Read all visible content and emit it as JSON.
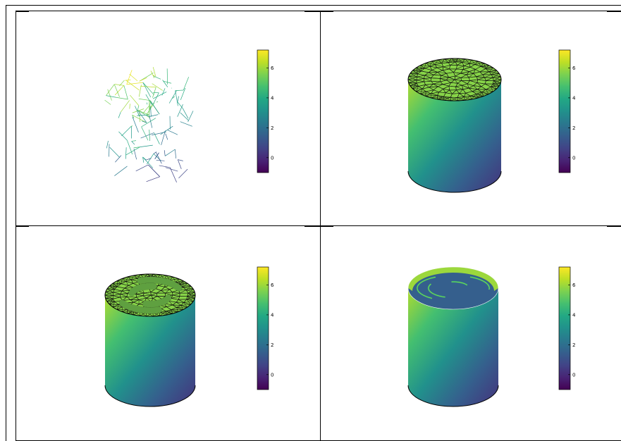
{
  "colormap": "viridis",
  "colors": {
    "viridis": [
      "#440154",
      "#482475",
      "#414487",
      "#355f8d",
      "#2a788e",
      "#21918c",
      "#22a884",
      "#44bf70",
      "#7ad151",
      "#bddf26",
      "#fde725"
    ],
    "mesh_edge": "#111111",
    "frame": "#000000",
    "background": "#ffffff"
  },
  "colorbar": {
    "min": -1,
    "max": 7.2,
    "ticks": [
      {
        "value": 0,
        "label": "0"
      },
      {
        "value": 2,
        "label": "2"
      },
      {
        "value": 4,
        "label": "4"
      },
      {
        "value": 6,
        "label": "6"
      }
    ]
  },
  "panels": [
    {
      "id": "p1",
      "content": "edge-only tetrahedral mesh wireframe colored by value",
      "top_mesh": "none",
      "holes": false
    },
    {
      "id": "p2",
      "content": "surface colored by value with dense triangle mesh on top face",
      "top_mesh": "full",
      "holes": false
    },
    {
      "id": "p3",
      "content": "surface colored by value with triangle mesh on top face cut by ring-shaped channels",
      "top_mesh": "cutout",
      "holes": false
    },
    {
      "id": "p4",
      "content": "surface colored by value, top face removed, inner channel walls visible",
      "top_mesh": "none",
      "holes": true
    }
  ]
}
